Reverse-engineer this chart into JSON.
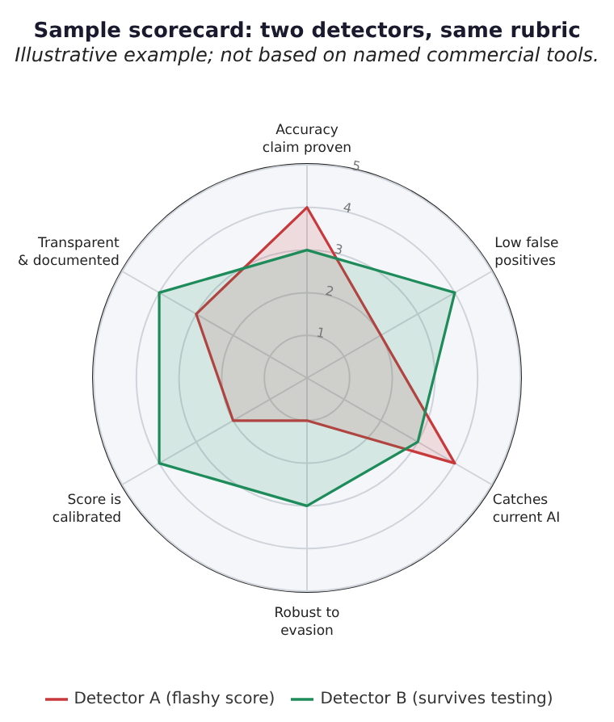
{
  "chart_data": {
    "type": "radar",
    "title": "Sample scorecard: two detectors, same rubric",
    "subtitle": "Illustrative example;  not based on named commercial tools.",
    "categories": [
      "Accuracy\nclaim proven",
      "Low false\npositives",
      "Catches\ncurrent AI",
      "Robust to\nevasion",
      "Score is\ncalibrated",
      "Transparent\n& documented"
    ],
    "series": [
      {
        "name": "Detector A (flashy score)",
        "color": "#c8393c",
        "values": [
          4,
          2,
          4,
          1,
          2,
          3
        ]
      },
      {
        "name": "Detector B (survives testing)",
        "color": "#1e8c5a",
        "values": [
          3,
          4,
          3,
          3,
          4,
          4
        ]
      }
    ],
    "ylim": [
      0,
      5
    ],
    "yticks": [
      1,
      2,
      3,
      4,
      5
    ],
    "grid": true,
    "legend": "bottom",
    "marker": "none",
    "line_style": "solid"
  }
}
